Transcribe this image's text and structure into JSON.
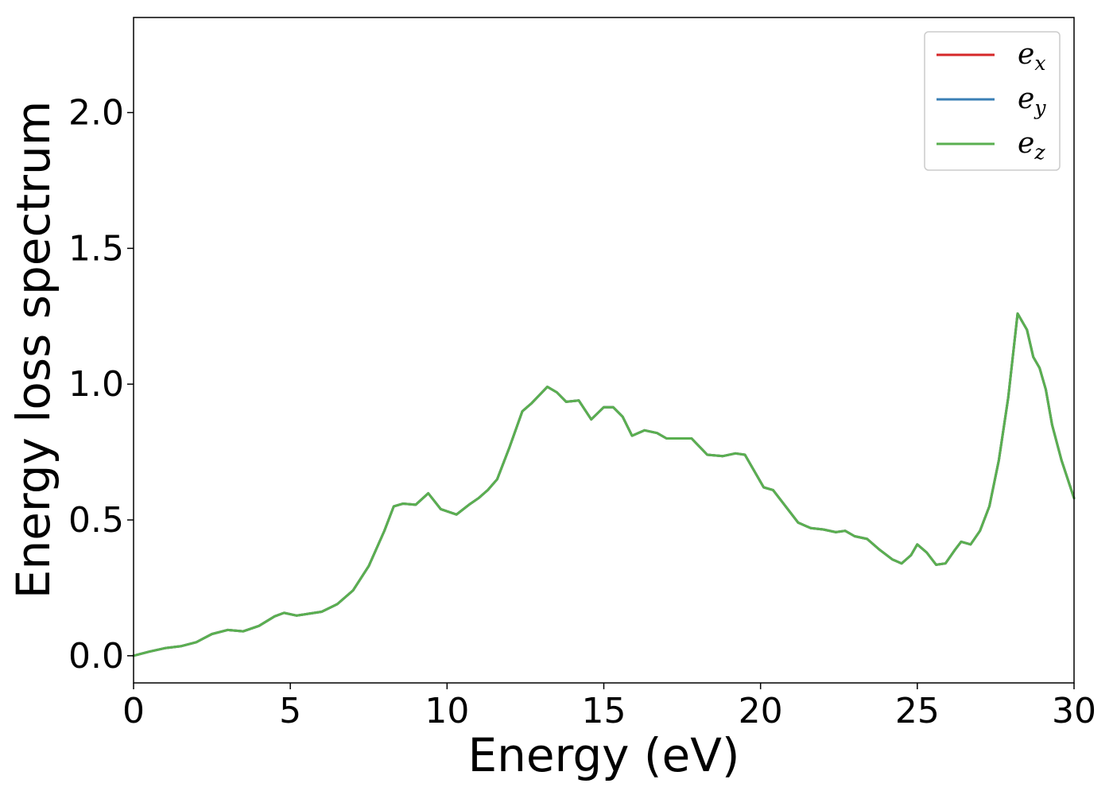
{
  "chart_data": {
    "type": "line",
    "xlabel": "Energy (eV)",
    "ylabel": "Energy loss spectrum",
    "xlim": [
      0,
      30
    ],
    "ylim": [
      -0.1,
      2.35
    ],
    "xticks": [
      0,
      5,
      10,
      15,
      20,
      25,
      30
    ],
    "xtick_labels": [
      "0",
      "5",
      "10",
      "15",
      "20",
      "25",
      "30"
    ],
    "yticks": [
      0.0,
      0.5,
      1.0,
      1.5,
      2.0
    ],
    "ytick_labels": [
      "0.0",
      "0.5",
      "1.0",
      "1.5",
      "2.0"
    ],
    "grid": false,
    "legend_position": "top-right",
    "x": [
      0,
      0.5,
      1.0,
      1.5,
      2.0,
      2.5,
      3.0,
      3.5,
      4.0,
      4.5,
      4.8,
      5.2,
      5.6,
      6.0,
      6.5,
      7.0,
      7.5,
      8.0,
      8.3,
      8.6,
      9.0,
      9.4,
      9.8,
      10.3,
      10.7,
      11.0,
      11.3,
      11.6,
      12.0,
      12.4,
      12.7,
      13.2,
      13.5,
      13.8,
      14.2,
      14.6,
      15.0,
      15.3,
      15.6,
      15.9,
      16.3,
      16.7,
      17.0,
      17.4,
      17.8,
      18.3,
      18.8,
      19.2,
      19.5,
      19.8,
      20.1,
      20.4,
      20.8,
      21.2,
      21.6,
      22.0,
      22.4,
      22.7,
      23.0,
      23.4,
      23.8,
      24.2,
      24.5,
      24.8,
      25.0,
      25.3,
      25.6,
      25.9,
      26.2,
      26.4,
      26.7,
      27.0,
      27.3,
      27.6,
      27.9,
      28.2,
      28.5,
      28.7,
      28.9,
      29.1,
      29.3,
      29.6,
      30.0
    ],
    "series": [
      {
        "name": "e_x",
        "values": [
          0.0,
          0.015,
          0.028,
          0.035,
          0.05,
          0.08,
          0.095,
          0.09,
          0.11,
          0.145,
          0.158,
          0.148,
          0.155,
          0.162,
          0.19,
          0.24,
          0.33,
          0.46,
          0.55,
          0.56,
          0.556,
          0.598,
          0.54,
          0.52,
          0.556,
          0.58,
          0.61,
          0.65,
          0.77,
          0.9,
          0.93,
          0.99,
          0.97,
          0.935,
          0.94,
          0.87,
          0.915,
          0.915,
          0.88,
          0.81,
          0.83,
          0.82,
          0.8,
          0.8,
          0.8,
          0.74,
          0.735,
          0.745,
          0.74,
          0.68,
          0.62,
          0.61,
          0.55,
          0.49,
          0.47,
          0.465,
          0.455,
          0.46,
          0.44,
          0.43,
          0.39,
          0.355,
          0.34,
          0.37,
          0.41,
          0.38,
          0.335,
          0.34,
          0.39,
          0.42,
          0.41,
          0.46,
          0.55,
          0.72,
          0.95,
          1.26,
          1.2,
          1.1,
          1.06,
          0.98,
          0.85,
          0.72,
          0.58
        ]
      },
      {
        "name": "e_y",
        "values": [
          0.0,
          0.015,
          0.028,
          0.035,
          0.05,
          0.08,
          0.095,
          0.09,
          0.11,
          0.145,
          0.158,
          0.148,
          0.155,
          0.162,
          0.19,
          0.24,
          0.33,
          0.46,
          0.55,
          0.56,
          0.556,
          0.598,
          0.54,
          0.52,
          0.556,
          0.58,
          0.61,
          0.65,
          0.77,
          0.9,
          0.93,
          0.99,
          0.97,
          0.935,
          0.94,
          0.87,
          0.915,
          0.915,
          0.88,
          0.81,
          0.83,
          0.82,
          0.8,
          0.8,
          0.8,
          0.74,
          0.735,
          0.745,
          0.74,
          0.68,
          0.62,
          0.61,
          0.55,
          0.49,
          0.47,
          0.465,
          0.455,
          0.46,
          0.44,
          0.43,
          0.39,
          0.355,
          0.34,
          0.37,
          0.41,
          0.38,
          0.335,
          0.34,
          0.39,
          0.42,
          0.41,
          0.46,
          0.55,
          0.72,
          0.95,
          1.26,
          1.2,
          1.1,
          1.06,
          0.98,
          0.85,
          0.72,
          0.58
        ]
      },
      {
        "name": "e_z",
        "values": [
          0.0,
          0.015,
          0.028,
          0.035,
          0.05,
          0.08,
          0.095,
          0.09,
          0.11,
          0.145,
          0.158,
          0.148,
          0.155,
          0.162,
          0.19,
          0.24,
          0.33,
          0.46,
          0.55,
          0.56,
          0.556,
          0.598,
          0.54,
          0.52,
          0.556,
          0.58,
          0.61,
          0.65,
          0.77,
          0.9,
          0.93,
          0.99,
          0.97,
          0.935,
          0.94,
          0.87,
          0.915,
          0.915,
          0.88,
          0.81,
          0.83,
          0.82,
          0.8,
          0.8,
          0.8,
          0.74,
          0.735,
          0.745,
          0.74,
          0.68,
          0.62,
          0.61,
          0.55,
          0.49,
          0.47,
          0.465,
          0.455,
          0.46,
          0.44,
          0.43,
          0.39,
          0.355,
          0.34,
          0.37,
          0.41,
          0.38,
          0.335,
          0.34,
          0.39,
          0.42,
          0.41,
          0.46,
          0.55,
          0.72,
          0.95,
          1.26,
          1.2,
          1.1,
          1.06,
          0.98,
          0.85,
          0.72,
          0.58
        ]
      }
    ],
    "legend": [
      {
        "base": "e",
        "sub": "x",
        "color": "#d62728"
      },
      {
        "base": "e",
        "sub": "y",
        "color": "#3a7fb5"
      },
      {
        "base": "e",
        "sub": "z",
        "color": "#5aaf50"
      }
    ]
  }
}
